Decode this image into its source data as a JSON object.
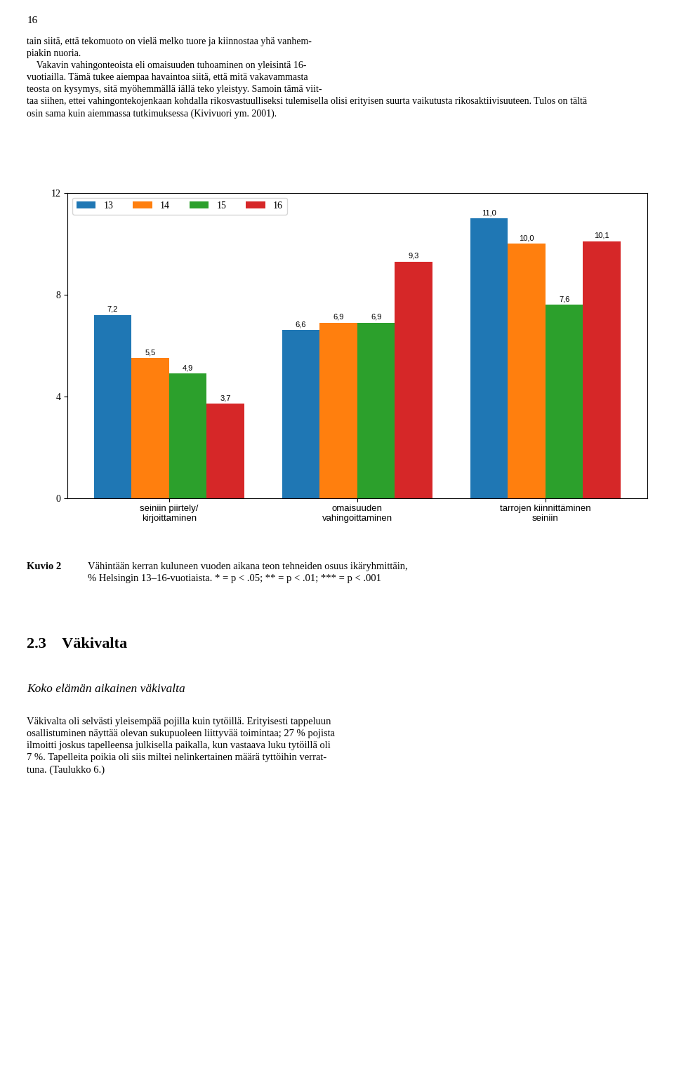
{
  "chart_data": {
    "type": "bar",
    "categories": [
      "seiniin piirtely/\nkirjoittaminen",
      "omaisuuden\nvahingoittaminen",
      "tarrojen kiinnittäminen\nseiniin"
    ],
    "series": [
      {
        "name": "13",
        "values": [
          7.2,
          6.6,
          11.0
        ],
        "value_labels": [
          "7,2",
          "6,6",
          "11,0"
        ]
      },
      {
        "name": "14",
        "values": [
          5.5,
          6.9,
          10.0
        ],
        "value_labels": [
          "5,5",
          "6,9",
          "10,0"
        ]
      },
      {
        "name": "15",
        "values": [
          4.9,
          6.9,
          7.6
        ],
        "value_labels": [
          "4,9",
          "6,9",
          "7,6"
        ]
      },
      {
        "name": "16",
        "values": [
          3.7,
          9.3,
          10.1
        ],
        "value_labels": [
          "3,7",
          "9,3",
          "10,1"
        ]
      }
    ],
    "ylim": [
      0,
      12
    ],
    "yticks": [
      0,
      4,
      8,
      12
    ],
    "data_labels": true,
    "legend": "upper left",
    "annotations": [
      "16",
      "tain siitä, että tekomuoto on vielä melko tuore ja kiinnostaa yhä vanhem-\npiakin nuoria.\n    Vakavin vahingonteoista eli omaisuuden tuhoaminen on yleisintä 16-\nvuotiailla. Tämä tukee aiempaa havaintoa siitä, että mitä vakavammasta\nteosta on kysymys, sitä myöhemmällä iällä teko yleistyy. Samoin tämä viit-\ntaa siihen, ettei vahingontekojenkaan kohdalla rikosvastuulliseksi tulemisella olisi erityisen suurta vaikutusta rikosaktiivisuuteen. Tulos on tältä\nosin sama kuin aiemmassa tutkimuksessa (Kivivuori ym. 2001).",
      "Kuvio 2",
      "Vähintään kerran kuluneen vuoden aikana teon tehneiden osuus ikäryhmittäin,\n% Helsingin 13–16-vuotiaista. * = p < .05; ** = p < .01; *** = p < .001",
      "2.3 Väkivalta",
      "Koko elämän aikainen väkivalta",
      "Väkivalta oli selvästi yleisempää pojilla kuin tytöillä. Erityisesti tappeluun\nosallistuminen näyttää olevan sukupuoleen liittyvää toimintaa; 27 % pojista\nilmoitti joskus tapelleensa julkisella paikalla, kun vastaava luku tytöillä oli\n7 %. Tapelleita poikia oli siis miltei nelinkertainen määrä tyttöihin verrat-\ntuna. (Taulukko 6.)"
    ]
  }
}
